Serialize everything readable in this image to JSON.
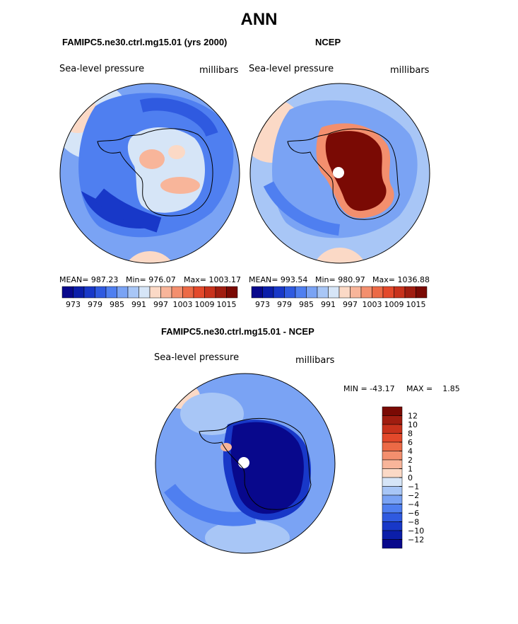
{
  "page": {
    "title": "ANN"
  },
  "colors": {
    "sequential": [
      "#08088c",
      "#0b1ea9",
      "#1838c8",
      "#2f5ae0",
      "#4f7ff0",
      "#7aa3f4",
      "#a8c6f6",
      "#d6e5f7",
      "#fbd9c6",
      "#f8b59a",
      "#f38f6e",
      "#ec6a46",
      "#e3492b",
      "#c8321c",
      "#a01d10",
      "#7a0a04"
    ],
    "difference": [
      "#08088c",
      "#0b1ea9",
      "#1838c8",
      "#2f5ae0",
      "#4f7ff0",
      "#7aa3f4",
      "#a8c6f6",
      "#d6e5f7",
      "#fbd9c6",
      "#f8b59a",
      "#f38f6e",
      "#ec6a46",
      "#e3492b",
      "#c8321c",
      "#a01d10",
      "#7a0a04"
    ],
    "land_outline": "#000000"
  },
  "chart_data": [
    {
      "type": "heatmap",
      "projection": "south-polar-stereographic",
      "title": "FAMIPC5.ne30.ctrl.mg15.01 (yrs 2000)",
      "variable": "Sea-level pressure",
      "units": "millibars",
      "stats_text": {
        "mean": "MEAN= 987.23",
        "min": "Min= 976.07",
        "max": "Max= 1003.17"
      },
      "mean": 987.23,
      "min": 976.07,
      "max": 1003.17,
      "colorbar": {
        "levels": [
          973,
          976,
          979,
          982,
          985,
          988,
          991,
          994,
          997,
          1000,
          1003,
          1006,
          1009,
          1012,
          1015
        ],
        "tick_labels": [
          "973",
          "979",
          "985",
          "991",
          "997",
          "1003",
          "1009",
          "1015"
        ],
        "orientation": "horizontal"
      }
    },
    {
      "type": "heatmap",
      "projection": "south-polar-stereographic",
      "title": "NCEP",
      "variable": "Sea-level pressure",
      "units": "millibars",
      "stats_text": {
        "mean": "MEAN= 993.54",
        "min": "Min= 980.97",
        "max": "Max= 1036.88"
      },
      "mean": 993.54,
      "min": 980.97,
      "max": 1036.88,
      "colorbar": {
        "levels": [
          973,
          976,
          979,
          982,
          985,
          988,
          991,
          994,
          997,
          1000,
          1003,
          1006,
          1009,
          1012,
          1015
        ],
        "tick_labels": [
          "973",
          "979",
          "985",
          "991",
          "997",
          "1003",
          "1009",
          "1015"
        ],
        "orientation": "horizontal"
      }
    },
    {
      "type": "heatmap",
      "projection": "south-polar-stereographic",
      "title": "FAMIPC5.ne30.ctrl.mg15.01 - NCEP",
      "variable": "Sea-level pressure",
      "units": "millibars",
      "stats_text": {
        "min": "MIN = -43.17",
        "max": "MAX =    1.85"
      },
      "min": -43.17,
      "max": 1.85,
      "colorbar": {
        "levels": [
          -12,
          -10,
          -8,
          -6,
          -4,
          -2,
          -1,
          0,
          1,
          2,
          4,
          6,
          8,
          10,
          12
        ],
        "tick_labels": [
          "12",
          "10",
          "8",
          "6",
          "4",
          "2",
          "1",
          "0",
          "−1",
          "−2",
          "−4",
          "−6",
          "−8",
          "−10",
          "−12"
        ],
        "orientation": "vertical"
      }
    }
  ]
}
